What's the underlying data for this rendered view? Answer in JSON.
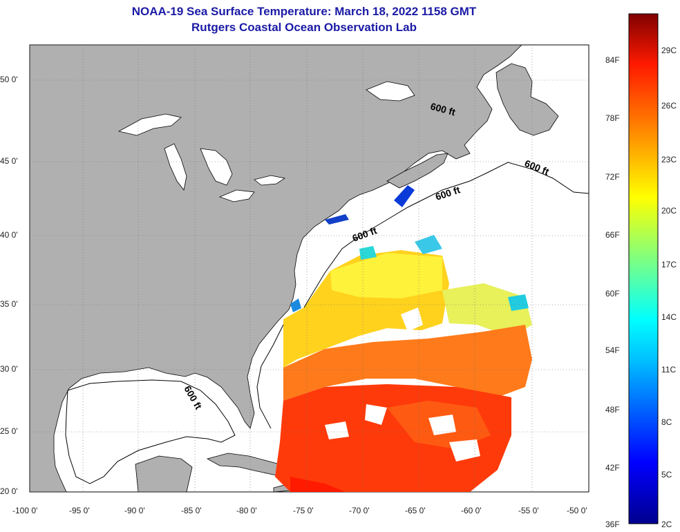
{
  "header": {
    "title": "NOAA-19 Sea Surface Temperature:  March 18, 2022 1158 GMT",
    "subtitle": "Rutgers Coastal Ocean Observation Lab"
  },
  "map": {
    "lon_ticks": [
      "-100 0'",
      "-95 0'",
      "-90 0'",
      "-85 0'",
      "-80 0'",
      "-75 0'",
      "-70 0'",
      "-65 0'",
      "-60 0'",
      "-55 0'",
      "-50 0'"
    ],
    "lat_ticks": [
      "50 0'",
      "45 0'",
      "40 0'",
      "35 0'",
      "30 0'",
      "25 0'",
      "20 0'"
    ],
    "contour_label": "600 ft",
    "colors": {
      "land": "#b0b0b0",
      "ocean": "#ffffff",
      "title": "#1a1aa6"
    }
  },
  "colorbar": {
    "fahrenheit": [
      "84F",
      "78F",
      "72F",
      "66F",
      "60F",
      "54F",
      "48F",
      "42F",
      "36F"
    ],
    "celsius": [
      "29C",
      "26C",
      "23C",
      "20C",
      "17C",
      "14C",
      "11C",
      "8C",
      "5C",
      "2C"
    ]
  }
}
